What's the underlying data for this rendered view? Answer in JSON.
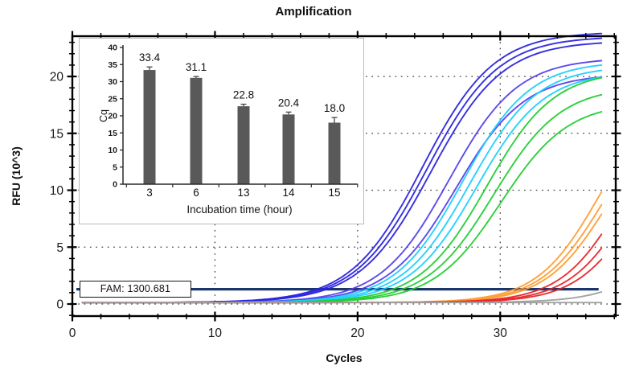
{
  "title": "Amplification",
  "chart_data": [
    {
      "id": "amplification-plot",
      "type": "line",
      "title": "Amplification",
      "xlabel": "Cycles",
      "ylabel": "RFU (10^3)",
      "xlim": [
        0,
        38.1
      ],
      "ylim": [
        -1.06,
        23.54
      ],
      "x_major_ticks": [
        0,
        10,
        20,
        30
      ],
      "x_minor_step": 2,
      "y_major_ticks": [
        0,
        5,
        10,
        15,
        20
      ],
      "y_minor_step": 1,
      "grid": {
        "style": "dotted",
        "x_lines": [
          10,
          20,
          30
        ],
        "y_lines": [
          0,
          5,
          10,
          15,
          20
        ]
      },
      "threshold": {
        "label": "FAM: 1300.681",
        "value_rfu_thousands": 1.3007,
        "color": "#1a366b",
        "x_start": 0.28,
        "x_end": 36.9
      },
      "curve_model": "rfu = baseline + plateau / (1 + exp(-(cycle - midpoint)/slope)), drawn for cycles 0.7 to 37.2",
      "baseline_rfu": 0.13,
      "series": [
        {
          "name": "dark-blue-group",
          "color": "#2b24dd",
          "curves": [
            {
              "midpoint": 24.55,
              "plateau": 23.8,
              "slope": 2.5
            },
            {
              "midpoint": 24.85,
              "plateau": 23.4,
              "slope": 2.5
            },
            {
              "midpoint": 25.15,
              "plateau": 23.0,
              "slope": 2.5
            }
          ]
        },
        {
          "name": "violet-blue-group",
          "color": "#5640ea",
          "curves": [
            {
              "midpoint": 26.4,
              "plateau": 21.5,
              "slope": 2.4
            },
            {
              "midpoint": 26.9,
              "plateau": 20.1,
              "slope": 2.4
            }
          ]
        },
        {
          "name": "cyan-group",
          "color": "#1ecfff",
          "curves": [
            {
              "midpoint": 27.35,
              "plateau": 21.2,
              "slope": 2.35
            },
            {
              "midpoint": 27.85,
              "plateau": 20.8,
              "slope": 2.35
            },
            {
              "midpoint": 28.35,
              "plateau": 20.3,
              "slope": 2.35
            }
          ]
        },
        {
          "name": "green-group",
          "color": "#23cd33",
          "curves": [
            {
              "midpoint": 29.05,
              "plateau": 20.4,
              "slope": 2.35
            },
            {
              "midpoint": 29.55,
              "plateau": 19.0,
              "slope": 2.35
            },
            {
              "midpoint": 30.05,
              "plateau": 17.6,
              "slope": 2.35
            }
          ]
        },
        {
          "name": "orange-group",
          "color": "#ff9d30",
          "curves": [
            {
              "midpoint": 37.0,
              "plateau": 19.0,
              "slope": 2.2
            },
            {
              "midpoint": 37.3,
              "plateau": 18.0,
              "slope": 2.2
            },
            {
              "midpoint": 37.6,
              "plateau": 17.5,
              "slope": 2.2
            }
          ]
        },
        {
          "name": "red-group",
          "color": "#e8262a",
          "curves": [
            {
              "midpoint": 38.8,
              "plateau": 19.0,
              "slope": 2.2
            },
            {
              "midpoint": 39.5,
              "plateau": 19.0,
              "slope": 2.2
            },
            {
              "midpoint": 40.0,
              "plateau": 18.0,
              "slope": 2.2
            }
          ]
        },
        {
          "name": "gray-group",
          "color": "#9e9e9e",
          "curves": [
            {
              "midpoint": 43.5,
              "plateau": 16.0,
              "slope": 2.3
            },
            {
              "midpoint": 60.0,
              "plateau": 0.0,
              "slope": 2.3
            }
          ]
        }
      ]
    },
    {
      "id": "cq-inset",
      "type": "bar",
      "categories": [
        "3",
        "6",
        "13",
        "14",
        "15"
      ],
      "values": [
        33.4,
        31.1,
        22.8,
        20.4,
        18.0
      ],
      "errors": [
        0.9,
        0.4,
        0.6,
        0.7,
        1.5
      ],
      "value_labels": [
        "33.4",
        "31.1",
        "22.8",
        "20.4",
        "18.0"
      ],
      "xlabel": "Incubation time (hour)",
      "ylabel": "Cq",
      "ylim": [
        0,
        40
      ],
      "y_ticks": [
        0,
        5,
        10,
        15,
        20,
        25,
        30,
        35,
        40
      ],
      "bar_color": "#595959",
      "error_color": "#3a3a3a",
      "grid": "off",
      "legend": "none"
    }
  ]
}
